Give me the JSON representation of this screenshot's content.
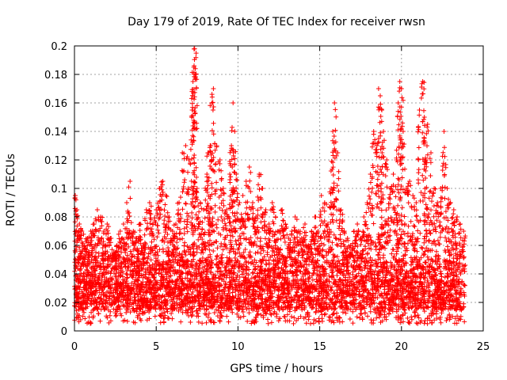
{
  "chart_data": {
    "type": "scatter",
    "title": "Day 179 of 2019, Rate Of TEC Index for receiver rwsn",
    "xlabel": "GPS time / hours",
    "ylabel": "ROTI / TECUs",
    "xlim": [
      0,
      25
    ],
    "ylim": [
      0,
      0.2
    ],
    "x_ticks": [
      0,
      5,
      10,
      15,
      20,
      25
    ],
    "x_tick_labels": [
      "0",
      "5",
      "10",
      "15",
      "20",
      "25"
    ],
    "y_ticks": [
      0,
      0.02,
      0.04,
      0.06,
      0.08,
      0.1,
      0.12,
      0.14,
      0.16,
      0.18,
      0.2
    ],
    "y_tick_labels": [
      "0",
      "0.02",
      "0.04",
      "0.06",
      "0.08",
      "0.1",
      "0.12",
      "0.14",
      "0.16",
      "0.18",
      "0.2"
    ],
    "grid": true,
    "legend": "none",
    "marker": "+",
    "series_color": "#ff0000",
    "series": [
      {
        "x": [
          0.05,
          0.15,
          0.3,
          0.45,
          0.6,
          0.8,
          1.0,
          1.2,
          1.4,
          1.6,
          1.8,
          2.0,
          2.2,
          2.4,
          2.6,
          2.8,
          3.0,
          3.2,
          3.4,
          3.6,
          3.8,
          4.0,
          4.2,
          4.4,
          4.6,
          4.8,
          5.0,
          5.2,
          5.4,
          5.6,
          5.8,
          6.0,
          6.2,
          6.4,
          6.6,
          6.8,
          7.0,
          7.2,
          7.25,
          7.3,
          7.35,
          7.4,
          7.5,
          7.7,
          7.9,
          8.1,
          8.2,
          8.3,
          8.4,
          8.5,
          8.7,
          8.9,
          9.1,
          9.3,
          9.5,
          9.6,
          9.7,
          9.8,
          9.9,
          10.1,
          10.3,
          10.5,
          10.7,
          10.9,
          11.1,
          11.3,
          11.5,
          11.7,
          11.9,
          12.1,
          12.3,
          12.5,
          12.7,
          12.9,
          13.1,
          13.3,
          13.5,
          13.7,
          13.9,
          14.1,
          14.3,
          14.5,
          14.7,
          14.9,
          15.1,
          15.3,
          15.5,
          15.7,
          15.8,
          15.9,
          16.1,
          16.3,
          16.5,
          16.7,
          16.9,
          17.1,
          17.3,
          17.5,
          17.7,
          17.9,
          18.1,
          18.3,
          18.5,
          18.6,
          18.7,
          18.8,
          18.9,
          19.1,
          19.3,
          19.5,
          19.7,
          19.8,
          19.9,
          20.0,
          20.1,
          20.3,
          20.5,
          20.7,
          20.9,
          21.1,
          21.3,
          21.4,
          21.5,
          21.6,
          21.8,
          22.0,
          22.2,
          22.4,
          22.6,
          22.8,
          23.0,
          23.2,
          23.4,
          23.6,
          23.8
        ],
        "y": [
          0.095,
          0.085,
          0.075,
          0.07,
          0.06,
          0.065,
          0.07,
          0.075,
          0.085,
          0.08,
          0.07,
          0.075,
          0.065,
          0.055,
          0.06,
          0.07,
          0.075,
          0.09,
          0.105,
          0.07,
          0.065,
          0.075,
          0.06,
          0.085,
          0.09,
          0.075,
          0.085,
          0.1,
          0.105,
          0.095,
          0.08,
          0.07,
          0.075,
          0.09,
          0.125,
          0.13,
          0.12,
          0.155,
          0.175,
          0.185,
          0.198,
          0.18,
          0.1,
          0.09,
          0.085,
          0.11,
          0.125,
          0.13,
          0.16,
          0.17,
          0.13,
          0.12,
          0.1,
          0.085,
          0.11,
          0.13,
          0.16,
          0.14,
          0.11,
          0.09,
          0.095,
          0.105,
          0.115,
          0.09,
          0.08,
          0.11,
          0.1,
          0.085,
          0.075,
          0.09,
          0.08,
          0.07,
          0.085,
          0.075,
          0.065,
          0.07,
          0.08,
          0.07,
          0.065,
          0.075,
          0.06,
          0.07,
          0.08,
          0.07,
          0.095,
          0.09,
          0.075,
          0.1,
          0.14,
          0.16,
          0.125,
          0.085,
          0.07,
          0.065,
          0.06,
          0.07,
          0.075,
          0.065,
          0.08,
          0.09,
          0.11,
          0.14,
          0.13,
          0.17,
          0.165,
          0.155,
          0.14,
          0.12,
          0.1,
          0.11,
          0.12,
          0.16,
          0.175,
          0.17,
          0.14,
          0.1,
          0.105,
          0.095,
          0.09,
          0.155,
          0.175,
          0.15,
          0.12,
          0.145,
          0.125,
          0.1,
          0.09,
          0.1,
          0.14,
          0.1,
          0.09,
          0.085,
          0.08,
          0.075,
          0.07
        ],
        "band_min": 0.005,
        "band_typical": [
          0.015,
          0.05
        ]
      }
    ]
  }
}
